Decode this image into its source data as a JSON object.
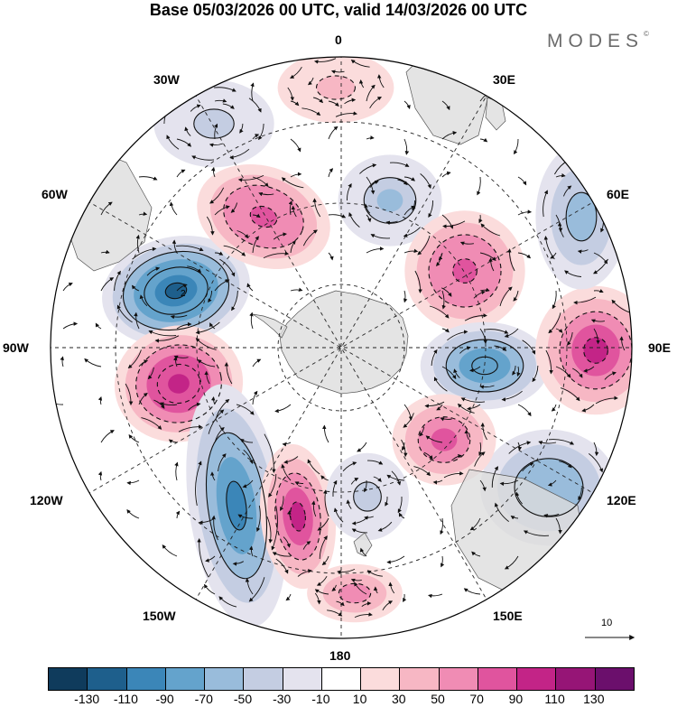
{
  "title": "Base 05/03/2026 00 UTC, valid 14/03/2026 00 UTC",
  "brand": "MODES",
  "brand_mark": "©",
  "longitude_labels": {
    "lon_0": "0",
    "lon_30e": "30E",
    "lon_60e": "60E",
    "lon_90e": "90E",
    "lon_120e": "120E",
    "lon_150e": "150E",
    "lon_180": "180",
    "lon_150w": "150W",
    "lon_120w": "120W",
    "lon_90w": "90W",
    "lon_60w": "60W",
    "lon_30w": "30W"
  },
  "reference_vector": {
    "label": "10"
  },
  "colorbar": {
    "colors": [
      "#0f3b5c",
      "#1e5f8c",
      "#3b86b8",
      "#64a3cc",
      "#99bcdb",
      "#c4cde2",
      "#e4e3ee",
      "#ffffff",
      "#fbdcdc",
      "#f7b7c4",
      "#f08cb4",
      "#e0549e",
      "#c32487",
      "#961576",
      "#6b0f6c"
    ],
    "labels": [
      "-130",
      "-110",
      "-90",
      "-70",
      "-50",
      "-30",
      "-10",
      "10",
      "30",
      "50",
      "70",
      "90",
      "110",
      "130"
    ]
  },
  "anomaly_centers": [
    {
      "name": "low-southeast-pacific",
      "sign": "negative",
      "value": -125
    },
    {
      "name": "high-southwest-atlantic",
      "sign": "positive",
      "value": 85
    },
    {
      "name": "high-southeast-pacific",
      "sign": "positive",
      "value": 105
    },
    {
      "name": "low-ross-sea-west",
      "sign": "negative",
      "value": -95
    },
    {
      "name": "high-ross-sea",
      "sign": "positive",
      "value": 90
    },
    {
      "name": "low-weddell",
      "sign": "negative",
      "value": -60
    },
    {
      "name": "high-indian-west",
      "sign": "positive",
      "value": 85
    },
    {
      "name": "low-indian-east",
      "sign": "negative",
      "value": -90
    },
    {
      "name": "high-indian-far-east",
      "sign": "positive",
      "value": 95
    },
    {
      "name": "low-south-australia",
      "sign": "negative",
      "value": -70
    },
    {
      "name": "high-south-of-australia",
      "sign": "positive",
      "value": 70
    },
    {
      "name": "low-tasman",
      "sign": "negative",
      "value": -45
    },
    {
      "name": "low-atlantic-north",
      "sign": "negative",
      "value": -40
    },
    {
      "name": "low-60e",
      "sign": "negative",
      "value": -55
    },
    {
      "name": "high-0",
      "sign": "positive",
      "value": 40
    },
    {
      "name": "high-180",
      "sign": "positive",
      "value": 55
    }
  ],
  "center_markers": [
    "2"
  ]
}
